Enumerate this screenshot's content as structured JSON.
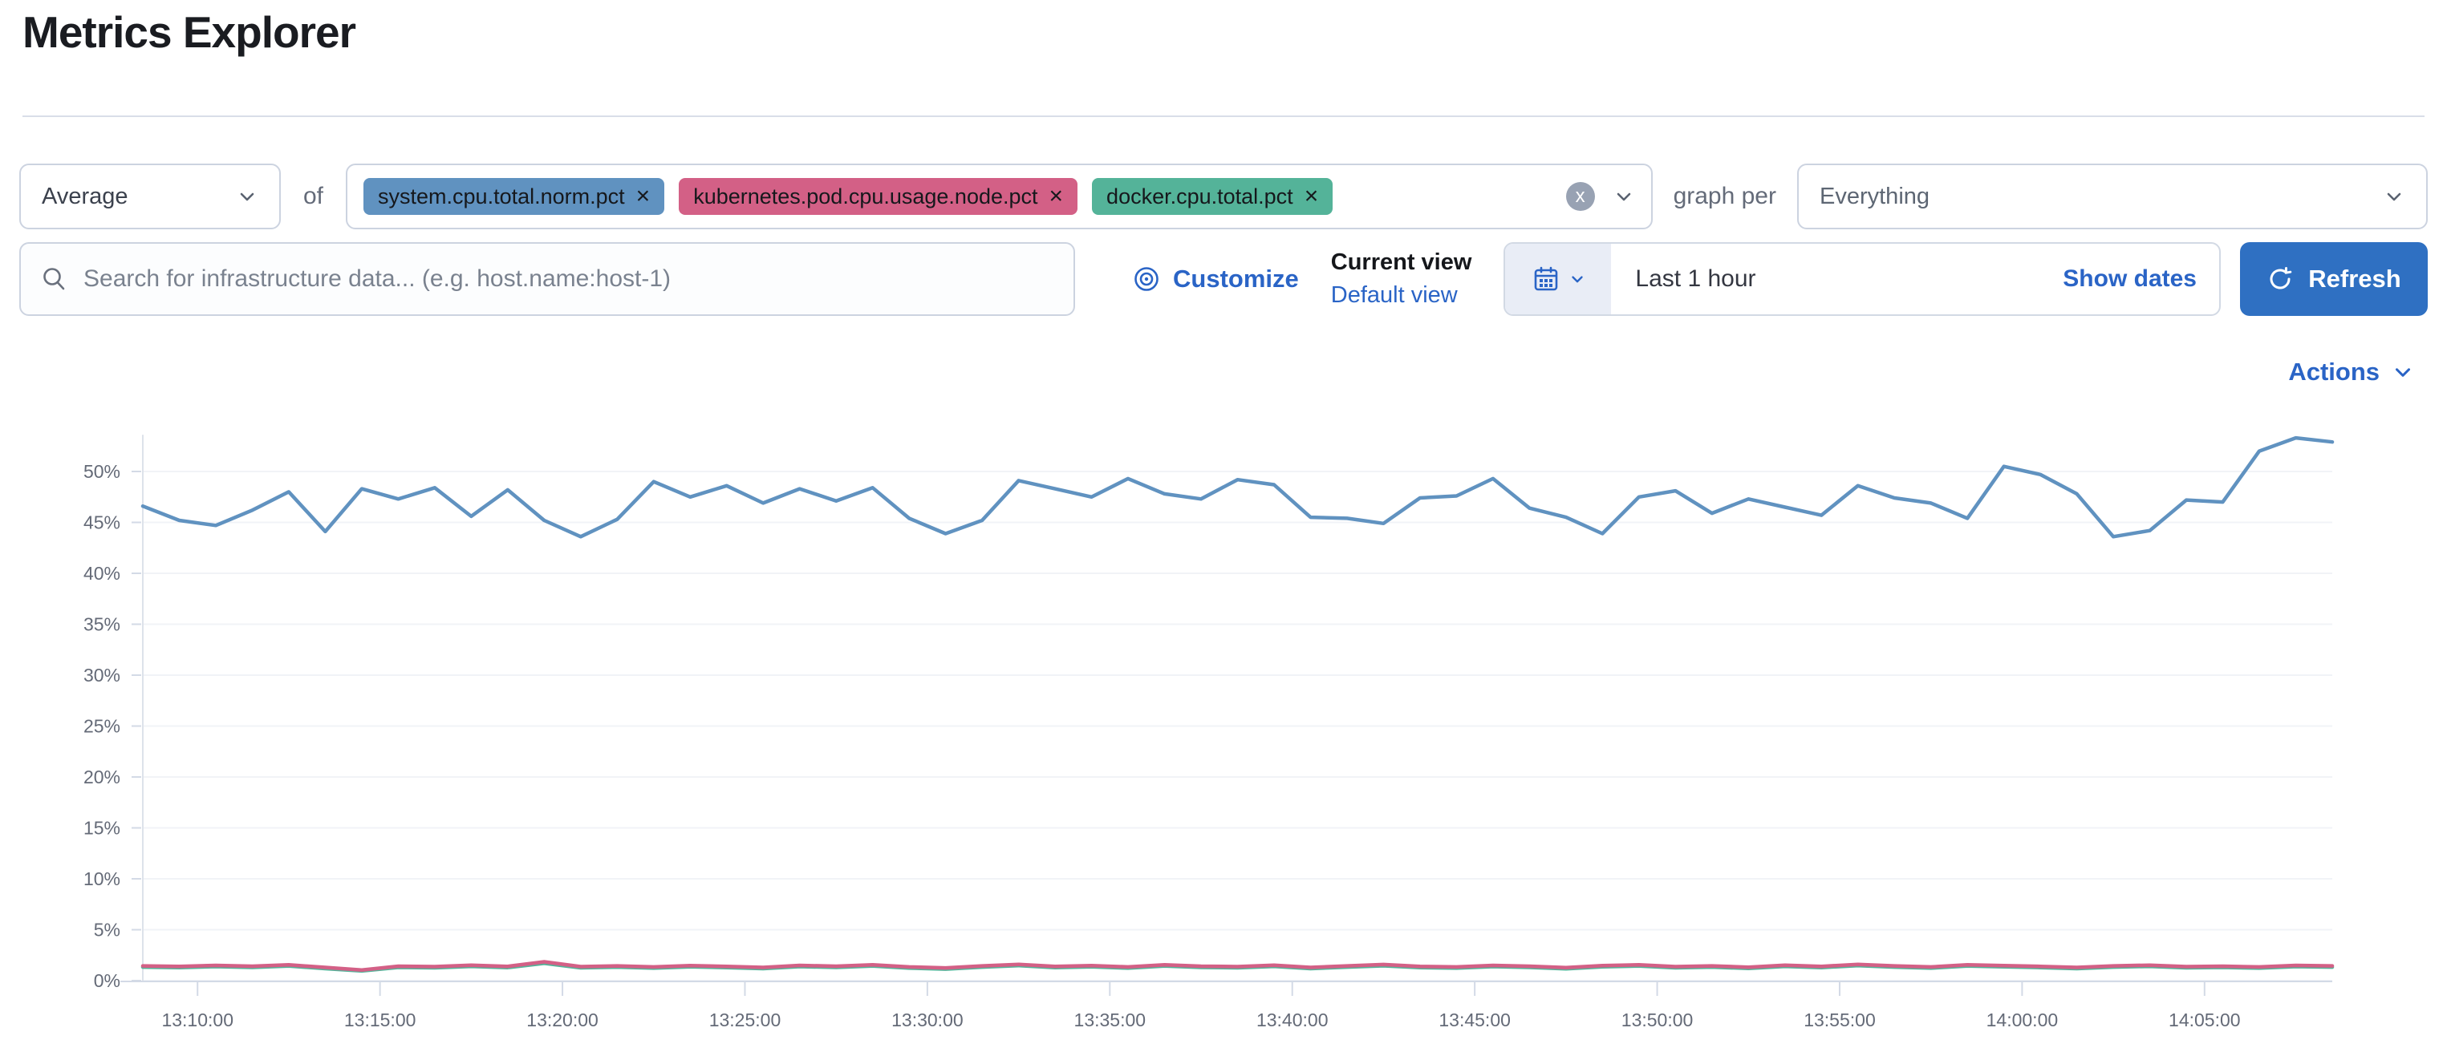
{
  "header": {
    "title": "Metrics Explorer"
  },
  "toolbar": {
    "aggregation": {
      "value": "Average"
    },
    "of_label": "of",
    "metrics": [
      {
        "label": "system.cpu.total.norm.pct",
        "color": "#6092C0"
      },
      {
        "label": "kubernetes.pod.cpu.usage.node.pct",
        "color": "#D36086"
      },
      {
        "label": "docker.cpu.total.pct",
        "color": "#54B399"
      }
    ],
    "remove_icon": "×",
    "clear_icon": "x",
    "graph_per_label": "graph per",
    "group_by": {
      "value": "Everything"
    }
  },
  "filter_bar": {
    "search": {
      "placeholder": "Search for infrastructure data... (e.g. host.name:host-1)"
    },
    "customize_label": "Customize",
    "current_view_label": "Current view",
    "view_name": "Default view",
    "time_picker": {
      "value": "Last 1 hour",
      "show_dates_label": "Show dates"
    },
    "refresh_label": "Refresh"
  },
  "chart_section": {
    "actions_label": "Actions"
  },
  "colors": {
    "link_blue": "#2a64c6",
    "refresh_button": "#2f70c2",
    "series_blue": "#6092C0",
    "series_pink": "#D36086",
    "series_green": "#54B399"
  },
  "chart_data": {
    "type": "line",
    "title": "",
    "xlabel": "",
    "ylabel": "",
    "ylim": [
      0,
      53.6
    ],
    "grid": true,
    "legend": "none",
    "yticks": [
      "0%",
      "5%",
      "10%",
      "15%",
      "20%",
      "25%",
      "30%",
      "35%",
      "40%",
      "45%",
      "50%"
    ],
    "xticks": [
      "13:10:00",
      "13:15:00",
      "13:20:00",
      "13:25:00",
      "13:30:00",
      "13:35:00",
      "13:40:00",
      "13:45:00",
      "13:50:00",
      "13:55:00",
      "14:00:00",
      "14:05:00"
    ],
    "x": [
      "13:08:30",
      "13:09:30",
      "13:10:30",
      "13:11:30",
      "13:12:30",
      "13:13:30",
      "13:14:30",
      "13:15:30",
      "13:16:30",
      "13:17:30",
      "13:18:30",
      "13:19:30",
      "13:20:30",
      "13:21:30",
      "13:22:30",
      "13:23:30",
      "13:24:30",
      "13:25:30",
      "13:26:30",
      "13:27:30",
      "13:28:30",
      "13:29:30",
      "13:30:30",
      "13:31:30",
      "13:32:30",
      "13:33:30",
      "13:34:30",
      "13:35:30",
      "13:36:30",
      "13:37:30",
      "13:38:30",
      "13:39:30",
      "13:40:30",
      "13:41:30",
      "13:42:30",
      "13:43:30",
      "13:44:30",
      "13:45:30",
      "13:46:30",
      "13:47:30",
      "13:48:30",
      "13:49:30",
      "13:50:30",
      "13:51:30",
      "13:52:30",
      "13:53:30",
      "13:54:30",
      "13:55:30",
      "13:56:30",
      "13:57:30",
      "13:58:30",
      "13:59:30",
      "14:00:30",
      "14:01:30",
      "14:02:30",
      "14:03:30",
      "14:04:30",
      "14:05:30",
      "14:06:30",
      "14:07:30",
      "14:08:30"
    ],
    "series": [
      {
        "name": "system.cpu.total.norm.pct",
        "color": "#6092C0",
        "unit": "%",
        "values": [
          46.6,
          45.2,
          44.7,
          46.2,
          48.0,
          44.1,
          48.3,
          47.3,
          48.4,
          45.6,
          48.2,
          45.2,
          43.6,
          45.3,
          49.0,
          47.5,
          48.6,
          46.9,
          48.3,
          47.1,
          48.4,
          45.4,
          43.9,
          45.2,
          49.1,
          48.3,
          47.5,
          49.3,
          47.8,
          47.3,
          49.2,
          48.7,
          45.5,
          45.4,
          44.9,
          47.4,
          47.6,
          49.3,
          46.4,
          45.5,
          43.9,
          47.5,
          48.1,
          45.9,
          47.3,
          46.5,
          45.7,
          48.6,
          47.4,
          46.9,
          45.4,
          50.5,
          49.7,
          47.8,
          43.6,
          44.2,
          47.2,
          47.0,
          52.0,
          53.3,
          52.9
        ]
      },
      {
        "name": "kubernetes.pod.cpu.usage.node.pct",
        "color": "#D36086",
        "unit": "%",
        "values": [
          1.45,
          1.4,
          1.5,
          1.42,
          1.55,
          1.3,
          1.05,
          1.42,
          1.38,
          1.52,
          1.4,
          1.85,
          1.38,
          1.45,
          1.35,
          1.48,
          1.4,
          1.3,
          1.5,
          1.42,
          1.55,
          1.35,
          1.25,
          1.45,
          1.6,
          1.4,
          1.48,
          1.35,
          1.55,
          1.42,
          1.38,
          1.52,
          1.3,
          1.45,
          1.58,
          1.4,
          1.35,
          1.5,
          1.42,
          1.28,
          1.48,
          1.55,
          1.38,
          1.45,
          1.32,
          1.52,
          1.4,
          1.6,
          1.45,
          1.35,
          1.55,
          1.48,
          1.4,
          1.3,
          1.45,
          1.52,
          1.38,
          1.42,
          1.35,
          1.5,
          1.45
        ]
      },
      {
        "name": "docker.cpu.total.pct",
        "color": "#54B399",
        "unit": "%",
        "values": [
          1.33,
          1.28,
          1.38,
          1.3,
          1.43,
          1.18,
          0.95,
          1.3,
          1.26,
          1.4,
          1.28,
          1.7,
          1.26,
          1.33,
          1.23,
          1.36,
          1.28,
          1.18,
          1.38,
          1.3,
          1.43,
          1.23,
          1.13,
          1.33,
          1.48,
          1.28,
          1.36,
          1.23,
          1.43,
          1.3,
          1.26,
          1.4,
          1.18,
          1.33,
          1.46,
          1.28,
          1.23,
          1.38,
          1.3,
          1.16,
          1.36,
          1.43,
          1.26,
          1.33,
          1.2,
          1.4,
          1.28,
          1.48,
          1.33,
          1.23,
          1.43,
          1.36,
          1.28,
          1.18,
          1.33,
          1.4,
          1.26,
          1.3,
          1.23,
          1.38,
          1.33
        ]
      }
    ]
  }
}
